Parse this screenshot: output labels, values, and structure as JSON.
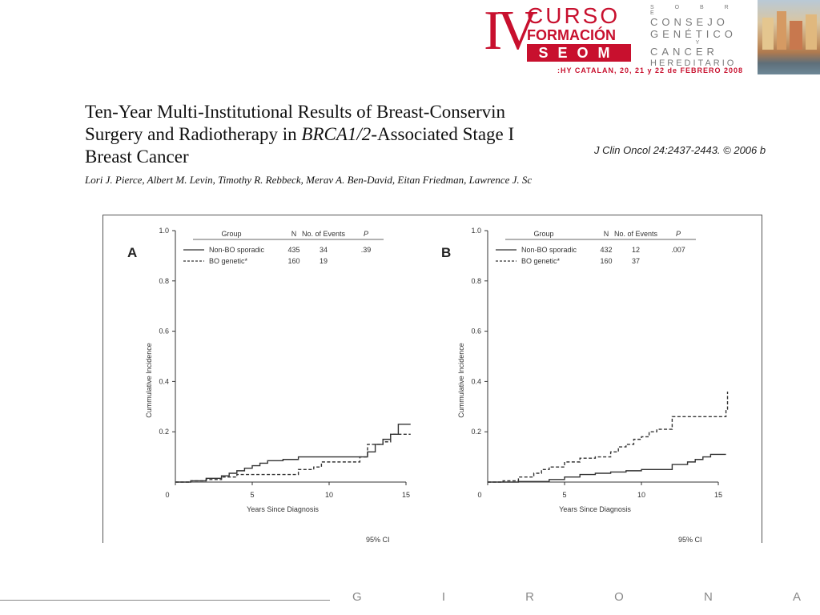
{
  "header": {
    "logo_numeral": "IV",
    "logo_line1": "CURSO",
    "logo_line2": "FORMACIÓN",
    "logo_org": "SEOM",
    "consejo_sobre": "S O B R E",
    "consejo_line1": "CONSEJO",
    "consejo_line2": "GENÉTICO",
    "consejo_y": "Y",
    "consejo_line3": "CANCER",
    "consejo_line4": "HEREDITARIO",
    "dates": ":HY CATALAN, 20, 21 y 22 de FEBRERO 2008"
  },
  "paper": {
    "title_line1": "Ten-Year Multi-Institutional Results of Breast-Conservin",
    "title_line2_a": "Surgery and Radiotherapy in ",
    "title_line2_b": "BRCA1/2",
    "title_line2_c": "-Associated Stage I",
    "title_line3": "Breast Cancer",
    "authors": "Lori J. Pierce, Albert M. Levin, Timothy R. Rebbeck, Merav A. Ben-David, Eitan Friedman, Lawrence J. Sc",
    "citation": "J Clin Oncol 24:2437-2443. © 2006 b"
  },
  "footer": {
    "letters": [
      "G",
      "I",
      "R",
      "O",
      "N",
      "A"
    ]
  },
  "colors": {
    "brand_red": "#c8102e",
    "line": "#333333"
  },
  "chart_data": [
    {
      "type": "line",
      "panel": "A",
      "ylabel": "Cummulative Incidence",
      "xlabel": "Years Since Diagnosis",
      "xlim": [
        0,
        15
      ],
      "ylim": [
        0,
        1.0
      ],
      "xticks": [
        "0",
        "5",
        "10",
        "15"
      ],
      "yticks": [
        "0.2",
        "0.4",
        "0.6",
        "0.8",
        "1.0"
      ],
      "legend_headers": [
        "Group",
        "N",
        "No. of Events",
        "P"
      ],
      "legend_rows": [
        {
          "name": "Non-BO sporadic",
          "n": "435",
          "events": "34",
          "p": ".39",
          "style": "solid"
        },
        {
          "name": "BO genetic*",
          "n": "160",
          "events": "19",
          "p": "",
          "style": "dashed"
        }
      ],
      "footnote": "95% CI",
      "series": [
        {
          "name": "Non-BO sporadic",
          "style": "solid",
          "x": [
            0,
            1,
            2,
            3,
            3.5,
            4,
            4.5,
            5,
            5.5,
            6,
            7,
            8,
            9,
            10,
            11,
            12,
            12.5,
            13,
            13.5,
            14,
            14.5,
            15.3
          ],
          "y": [
            0,
            0.005,
            0.015,
            0.025,
            0.035,
            0.045,
            0.055,
            0.065,
            0.075,
            0.085,
            0.09,
            0.1,
            0.1,
            0.1,
            0.1,
            0.1,
            0.12,
            0.15,
            0.17,
            0.19,
            0.23,
            0.23
          ]
        },
        {
          "name": "BO genetic*",
          "style": "dashed",
          "x": [
            0,
            1,
            2,
            3,
            4,
            5,
            7,
            8,
            9,
            9.5,
            11,
            12,
            12.5,
            13.5,
            14,
            15.3
          ],
          "y": [
            0,
            0.005,
            0.01,
            0.02,
            0.03,
            0.03,
            0.03,
            0.05,
            0.06,
            0.08,
            0.08,
            0.1,
            0.15,
            0.16,
            0.19,
            0.19
          ]
        }
      ]
    },
    {
      "type": "line",
      "panel": "B",
      "ylabel": "Cummulative Incidence",
      "xlabel": "Years Since Diagnosis",
      "xlim": [
        0,
        15
      ],
      "ylim": [
        0,
        1.0
      ],
      "xticks": [
        "0",
        "5",
        "10",
        "15"
      ],
      "yticks": [
        "0.2",
        "0.4",
        "0.6",
        "0.8",
        "1.0"
      ],
      "legend_headers": [
        "Group",
        "N",
        "No. of Events",
        "P"
      ],
      "legend_rows": [
        {
          "name": "Non-BO sporadic",
          "n": "432",
          "events": "12",
          "p": ".007",
          "style": "solid"
        },
        {
          "name": "BO genetic*",
          "n": "160",
          "events": "37",
          "p": "",
          "style": "dashed"
        }
      ],
      "footnote": "95% CI",
      "series": [
        {
          "name": "Non-BO sporadic",
          "style": "solid",
          "x": [
            0,
            2,
            4,
            5,
            6,
            7,
            8,
            9,
            10,
            11,
            12,
            13,
            13.5,
            14,
            14.5,
            15.5
          ],
          "y": [
            0,
            0.002,
            0.01,
            0.02,
            0.03,
            0.035,
            0.04,
            0.045,
            0.05,
            0.05,
            0.07,
            0.08,
            0.09,
            0.1,
            0.11,
            0.11
          ]
        },
        {
          "name": "BO genetic*",
          "style": "dashed",
          "x": [
            0,
            1,
            2,
            3,
            3.5,
            4,
            5,
            6,
            7,
            8,
            8.5,
            9,
            9.5,
            10,
            10.5,
            11,
            12,
            13,
            14,
            15,
            15.5,
            15.6
          ],
          "y": [
            0,
            0.005,
            0.02,
            0.035,
            0.05,
            0.06,
            0.08,
            0.095,
            0.1,
            0.12,
            0.14,
            0.15,
            0.17,
            0.18,
            0.2,
            0.21,
            0.26,
            0.26,
            0.26,
            0.26,
            0.29,
            0.36
          ]
        }
      ]
    }
  ]
}
